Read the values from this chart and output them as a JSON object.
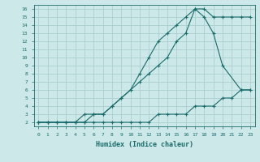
{
  "xlabel": "Humidex (Indice chaleur)",
  "bg_color": "#cce8e8",
  "grid_color": "#aacfcf",
  "line_color": "#1a6b6b",
  "xlim": [
    -0.5,
    23.5
  ],
  "ylim": [
    1.5,
    16.5
  ],
  "xticks": [
    0,
    1,
    2,
    3,
    4,
    5,
    6,
    7,
    8,
    9,
    10,
    11,
    12,
    13,
    14,
    15,
    16,
    17,
    18,
    19,
    20,
    21,
    22,
    23
  ],
  "yticks": [
    2,
    3,
    4,
    5,
    6,
    7,
    8,
    9,
    10,
    11,
    12,
    13,
    14,
    15,
    16
  ],
  "line1_x": [
    0,
    1,
    2,
    3,
    4,
    5,
    6,
    7,
    8,
    9,
    10,
    11,
    12,
    13,
    14,
    15,
    16,
    17,
    18,
    19,
    20,
    21,
    22,
    23
  ],
  "line1_y": [
    2,
    2,
    2,
    2,
    2,
    2,
    2,
    2,
    2,
    2,
    2,
    2,
    2,
    3,
    3,
    3,
    3,
    4,
    4,
    4,
    5,
    5,
    6,
    6
  ],
  "line2_x": [
    0,
    1,
    2,
    3,
    4,
    5,
    6,
    7,
    8,
    9,
    10,
    11,
    12,
    13,
    14,
    15,
    16,
    17,
    18,
    19,
    20,
    21,
    22,
    23
  ],
  "line2_y": [
    2,
    2,
    2,
    2,
    2,
    3,
    3,
    3,
    4,
    5,
    6,
    8,
    10,
    12,
    13,
    14,
    15,
    16,
    16,
    15,
    15,
    15,
    15,
    15
  ],
  "line3_x": [
    0,
    1,
    2,
    3,
    4,
    5,
    6,
    7,
    8,
    9,
    10,
    11,
    12,
    13,
    14,
    15,
    16,
    17,
    18,
    19,
    20,
    22,
    23
  ],
  "line3_y": [
    2,
    2,
    2,
    2,
    2,
    2,
    3,
    3,
    4,
    5,
    6,
    7,
    8,
    9,
    10,
    12,
    13,
    16,
    15,
    13,
    9,
    6,
    6
  ]
}
